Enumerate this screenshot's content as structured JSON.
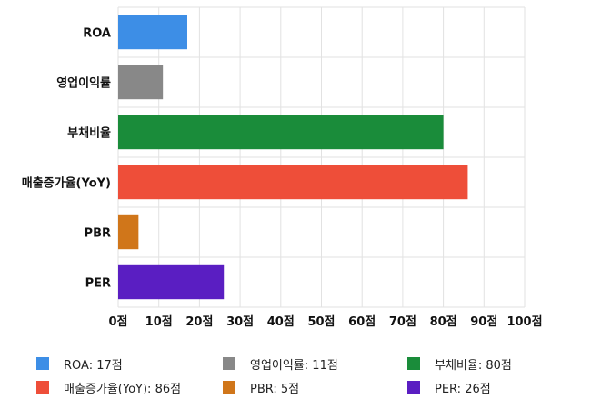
{
  "chart_data": {
    "type": "bar",
    "orientation": "horizontal",
    "categories": [
      "ROA",
      "영업이익률",
      "부채비율",
      "매출증가율(YoY)",
      "PBR",
      "PER"
    ],
    "values": [
      17,
      11,
      80,
      86,
      5,
      26
    ],
    "colors": [
      "#3d8ee6",
      "#888888",
      "#1a8c3a",
      "#ee4e39",
      "#d0761a",
      "#5a1ec2"
    ],
    "xlim": [
      0,
      100
    ],
    "xticks": [
      0,
      10,
      20,
      30,
      40,
      50,
      60,
      70,
      80,
      90,
      100
    ],
    "tick_suffix": "점",
    "grid": true,
    "legend_position": "bottom",
    "legend": [
      {
        "label": "ROA: 17점",
        "color": "#3d8ee6"
      },
      {
        "label": "영업이익률: 11점",
        "color": "#888888"
      },
      {
        "label": "부채비율: 80점",
        "color": "#1a8c3a"
      },
      {
        "label": "매출증가율(YoY): 86점",
        "color": "#ee4e39"
      },
      {
        "label": "PBR: 5점",
        "color": "#d0761a"
      },
      {
        "label": "PER: 26점",
        "color": "#5a1ec2"
      }
    ]
  }
}
